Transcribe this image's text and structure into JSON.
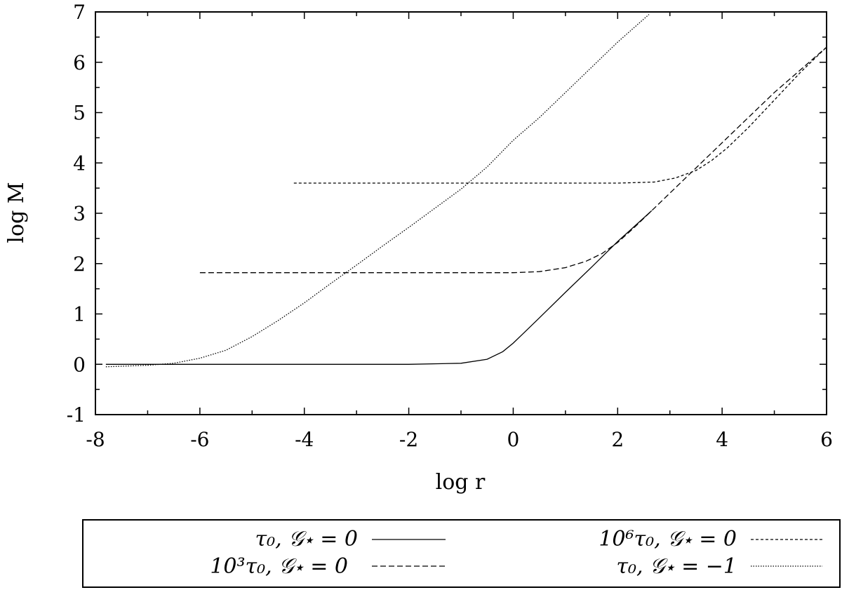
{
  "chart_data": {
    "type": "line",
    "title": "",
    "xlabel": "log r",
    "ylabel": "log M",
    "xlim": [
      -8,
      6
    ],
    "ylim": [
      -1,
      7
    ],
    "xticks": [
      "-8",
      "-6",
      "-4",
      "-2",
      "0",
      "2",
      "4",
      "6"
    ],
    "yticks": [
      "-1",
      "0",
      "1",
      "2",
      "3",
      "4",
      "5",
      "6",
      "7"
    ],
    "grid": false,
    "legend_position": "bottom",
    "series": [
      {
        "name": "τ₀, 𝒢⋆ = 0",
        "dash": "solid",
        "x": [
          -7.8,
          -6,
          -4,
          -2,
          -1,
          -0.5,
          -0.2,
          0,
          0.2,
          0.5,
          1,
          1.5,
          2,
          2.65
        ],
        "y": [
          0,
          0,
          0,
          0,
          0.02,
          0.1,
          0.25,
          0.42,
          0.62,
          0.92,
          1.43,
          1.93,
          2.44,
          3.05
        ]
      },
      {
        "name": "10³τ₀, 𝒢⋆ = 0",
        "dash": "dashed",
        "x": [
          -6,
          -4,
          -2,
          0,
          0.5,
          1,
          1.4,
          1.7,
          2,
          2.3,
          2.65,
          3,
          4,
          5,
          6
        ],
        "y": [
          1.82,
          1.82,
          1.82,
          1.82,
          1.84,
          1.92,
          2.05,
          2.2,
          2.42,
          2.7,
          3.05,
          3.4,
          4.4,
          5.4,
          6.3
        ]
      },
      {
        "name": "10⁶τ₀, 𝒢⋆ = 0",
        "dash": "short-dashed",
        "x": [
          -4.2,
          -2,
          0,
          2,
          2.7,
          3.1,
          3.5,
          3.8,
          4.1,
          4.5,
          5,
          5.5,
          6
        ],
        "y": [
          3.6,
          3.6,
          3.6,
          3.6,
          3.62,
          3.7,
          3.85,
          4.05,
          4.3,
          4.7,
          5.25,
          5.8,
          6.3
        ]
      },
      {
        "name": "τ₀, 𝒢⋆ = −1",
        "dash": "dotted",
        "x": [
          -7.8,
          -7,
          -6.5,
          -6,
          -5.5,
          -5,
          -4.5,
          -4,
          -3.5,
          -3,
          -2.5,
          -2,
          -1.5,
          -1,
          -0.5,
          0,
          0.5,
          1,
          1.5,
          2,
          2.6
        ],
        "y": [
          -0.05,
          -0.02,
          0.02,
          0.12,
          0.28,
          0.55,
          0.87,
          1.22,
          1.6,
          1.97,
          2.35,
          2.72,
          3.1,
          3.48,
          3.92,
          4.45,
          4.9,
          5.4,
          5.9,
          6.4,
          6.95
        ]
      }
    ]
  }
}
